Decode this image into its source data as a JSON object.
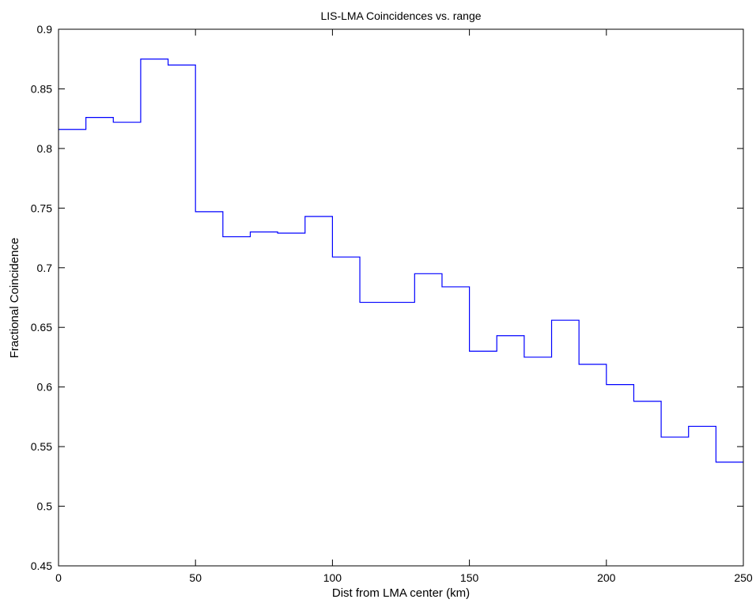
{
  "chart_data": {
    "type": "line",
    "style": "stairs",
    "title": "LIS-LMA Coincidences vs. range",
    "xlabel": "Dist from LMA center (km)",
    "ylabel": "Fractional Coincidence",
    "xlim": [
      0,
      250
    ],
    "ylim": [
      0.45,
      0.9
    ],
    "xticks": [
      0,
      50,
      100,
      150,
      200,
      250
    ],
    "yticks": [
      0.45,
      0.5,
      0.55,
      0.6,
      0.65,
      0.7,
      0.75,
      0.8,
      0.85,
      0.9
    ],
    "grid": false,
    "series": [
      {
        "color": "#0000ff",
        "x": [
          0,
          10,
          20,
          30,
          40,
          50,
          60,
          70,
          80,
          90,
          100,
          110,
          120,
          130,
          140,
          150,
          160,
          170,
          180,
          190,
          200,
          210,
          220,
          230,
          240
        ],
        "y": [
          0.816,
          0.826,
          0.822,
          0.875,
          0.87,
          0.747,
          0.726,
          0.73,
          0.729,
          0.743,
          0.709,
          0.671,
          0.671,
          0.695,
          0.684,
          0.63,
          0.643,
          0.625,
          0.656,
          0.619,
          0.602,
          0.588,
          0.558,
          0.567,
          0.537
        ]
      }
    ]
  }
}
